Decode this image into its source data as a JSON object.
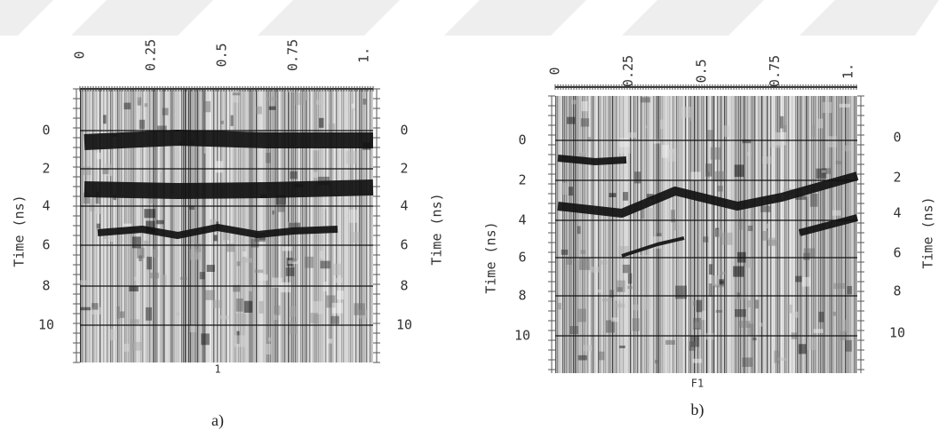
{
  "panels": [
    {
      "caption": "a)",
      "top_ticks": [
        "0",
        "0.25",
        "0.5",
        "0.75",
        "1."
      ],
      "left_ticks": [
        "0",
        "2",
        "4",
        "6",
        "8",
        "10"
      ],
      "right_ticks": [
        "0",
        "2",
        "4",
        "6",
        "8",
        "10"
      ],
      "axis_title_left": "Time (ns)",
      "axis_title_right": "Time (ns)",
      "bottom_label": "1"
    },
    {
      "caption": "b)",
      "top_ticks": [
        "0",
        "0.25",
        "0.5",
        "0.75",
        "1."
      ],
      "left_ticks": [
        "0",
        "2",
        "4",
        "6",
        "8",
        "10"
      ],
      "right_ticks": [
        "0",
        "2",
        "4",
        "6",
        "8",
        "10"
      ],
      "axis_title_left": "Time (ns)",
      "axis_title_right": "Time (ns)",
      "bottom_label": "F1"
    }
  ]
}
